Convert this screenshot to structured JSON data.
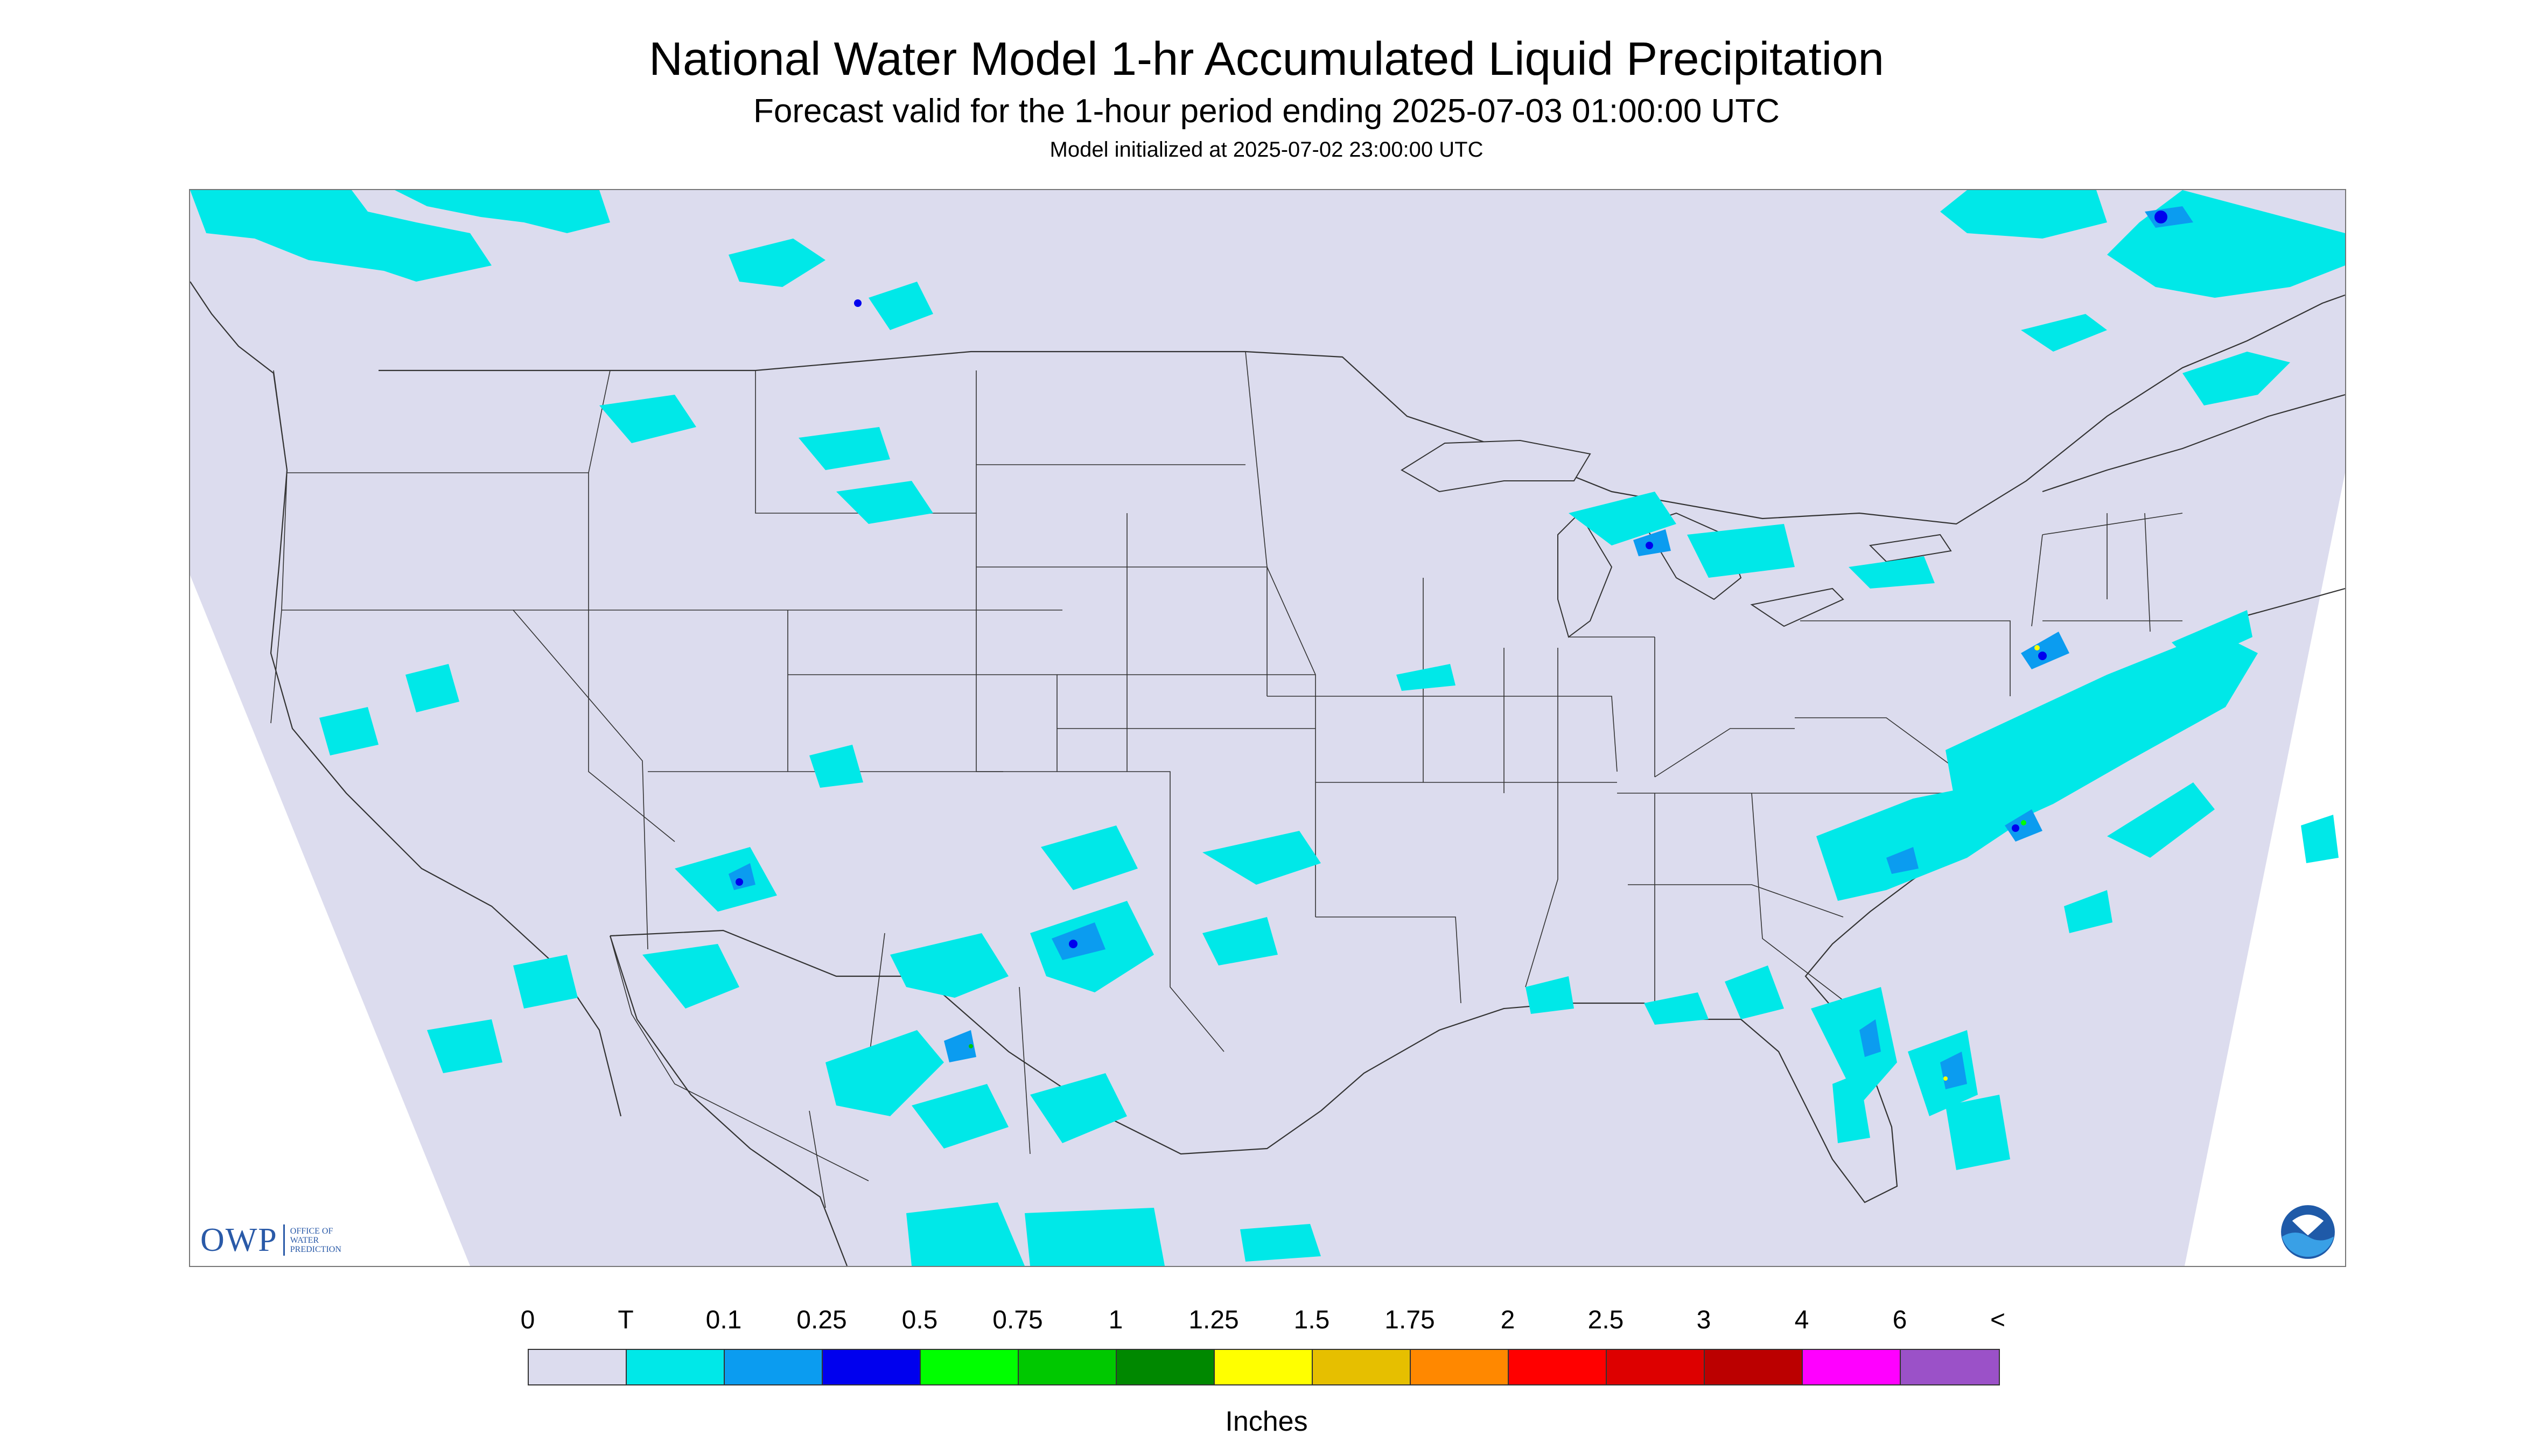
{
  "title": "National Water Model 1-hr Accumulated Liquid Precipitation",
  "subtitle": "Forecast valid for the 1-hour period ending 2025-07-03 01:00:00 UTC",
  "init_line": "Model initialized at 2025-07-02 23:00:00 UTC",
  "logo": {
    "text": "OWP",
    "subtext": [
      "OFFICE OF",
      "WATER",
      "PREDICTION"
    ],
    "icon": "noaa-logo-icon"
  },
  "legend": {
    "units": "Inches",
    "labels": [
      "0",
      "T",
      "0.1",
      "0.25",
      "0.5",
      "0.75",
      "1",
      "1.25",
      "1.5",
      "1.75",
      "2",
      "2.5",
      "3",
      "4",
      "6",
      "<"
    ],
    "colors": [
      "#dcdcee",
      "#00e8e8",
      "#0b9cf0",
      "#0000ee",
      "#00ff00",
      "#00c800",
      "#008800",
      "#ffff00",
      "#e6bf00",
      "#ff8800",
      "#ff0000",
      "#dd0000",
      "#bb0000",
      "#ff00ff",
      "#9b51c8"
    ]
  },
  "colors": {
    "model_domain": "#dcdcee",
    "outside_domain": "#ffffff",
    "boundary": "#333333",
    "trace": "#00e8e8",
    "light": "#0b9cf0",
    "moderate": "#0000ee"
  }
}
